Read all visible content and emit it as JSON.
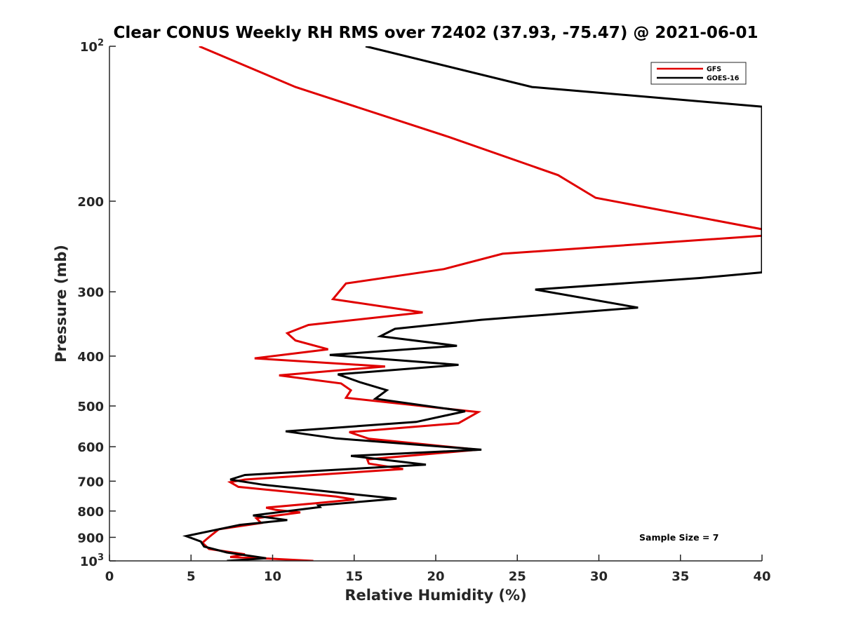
{
  "chart_data": {
    "type": "line",
    "title": "Clear CONUS Weekly RH RMS over 72402 (37.93, -75.47) @ 2021-06-01",
    "xlabel": "Relative Humidity (%)",
    "ylabel": "Pressure (mb)",
    "xlim": [
      0,
      40
    ],
    "ylim": [
      100,
      1000
    ],
    "yscale": "log",
    "y_reversed": true,
    "grid": false,
    "legend_position": "top-right",
    "x_ticks": [
      0,
      5,
      10,
      15,
      20,
      25,
      30,
      35,
      40
    ],
    "x_tick_labels": [
      "0",
      "5",
      "10",
      "15",
      "20",
      "25",
      "30",
      "35",
      "40"
    ],
    "y_ticks": [
      100,
      200,
      300,
      400,
      500,
      600,
      700,
      800,
      900,
      1000
    ],
    "y_tick_labels": [
      {
        "base": "10",
        "exp": "2"
      },
      {
        "base": "200",
        "exp": ""
      },
      {
        "base": "300",
        "exp": ""
      },
      {
        "base": "400",
        "exp": ""
      },
      {
        "base": "500",
        "exp": ""
      },
      {
        "base": "600",
        "exp": ""
      },
      {
        "base": "700",
        "exp": ""
      },
      {
        "base": "800",
        "exp": ""
      },
      {
        "base": "900",
        "exp": ""
      },
      {
        "base": "10",
        "exp": "3"
      }
    ],
    "annotation": "Sample Size = 7",
    "series": [
      {
        "name": "GFS",
        "color": "#e00000",
        "points": [
          [
            5.5,
            100
          ],
          [
            11.4,
            120
          ],
          [
            20.8,
            150
          ],
          [
            27.5,
            178
          ],
          [
            29.8,
            197
          ],
          [
            40.4,
            228
          ],
          [
            40.4,
            233
          ],
          [
            24.1,
            253
          ],
          [
            20.5,
            271
          ],
          [
            14.5,
            289
          ],
          [
            13.7,
            310
          ],
          [
            19.2,
            329
          ],
          [
            12.2,
            348
          ],
          [
            10.9,
            361
          ],
          [
            11.4,
            373
          ],
          [
            13.4,
            388
          ],
          [
            8.9,
            404
          ],
          [
            16.9,
            419
          ],
          [
            10.4,
            436
          ],
          [
            14.2,
            452
          ],
          [
            14.8,
            466
          ],
          [
            14.5,
            482
          ],
          [
            22.6,
            514
          ],
          [
            21.4,
            540
          ],
          [
            14.7,
            562
          ],
          [
            15.9,
            579
          ],
          [
            22.6,
            608
          ],
          [
            15.8,
            635
          ],
          [
            15.9,
            647
          ],
          [
            18.0,
            663
          ],
          [
            8.3,
            695
          ],
          [
            7.4,
            703
          ],
          [
            7.9,
            718
          ],
          [
            13.9,
            750
          ],
          [
            15.0,
            760
          ],
          [
            12.6,
            773
          ],
          [
            9.6,
            788
          ],
          [
            10.2,
            796
          ],
          [
            11.7,
            805
          ],
          [
            9.0,
            826
          ],
          [
            9.3,
            844
          ],
          [
            6.7,
            868
          ],
          [
            6.1,
            899
          ],
          [
            5.7,
            922
          ],
          [
            6.1,
            948
          ],
          [
            8.3,
            971
          ],
          [
            7.4,
            983
          ],
          [
            9.3,
            988
          ],
          [
            12.5,
            1000
          ]
        ]
      },
      {
        "name": "GOES-16",
        "color": "#000000",
        "points": [
          [
            15.7,
            100
          ],
          [
            25.9,
            120
          ],
          [
            40.0,
            131
          ],
          [
            40.0,
            275
          ],
          [
            36.2,
            282
          ],
          [
            26.1,
            297
          ],
          [
            32.4,
            322
          ],
          [
            22.8,
            340
          ],
          [
            17.5,
            354
          ],
          [
            16.6,
            366
          ],
          [
            21.3,
            382
          ],
          [
            13.5,
            398
          ],
          [
            21.4,
            416
          ],
          [
            14.0,
            434
          ],
          [
            15.4,
            450
          ],
          [
            17.0,
            466
          ],
          [
            16.3,
            484
          ],
          [
            21.8,
            512
          ],
          [
            18.8,
            537
          ],
          [
            10.8,
            560
          ],
          [
            13.9,
            578
          ],
          [
            22.8,
            608
          ],
          [
            14.8,
            625
          ],
          [
            19.4,
            650
          ],
          [
            8.3,
            681
          ],
          [
            7.4,
            695
          ],
          [
            9.4,
            711
          ],
          [
            15.1,
            743
          ],
          [
            17.6,
            757
          ],
          [
            12.8,
            780
          ],
          [
            12.9,
            786
          ],
          [
            8.8,
            816
          ],
          [
            10.9,
            833
          ],
          [
            8.0,
            851
          ],
          [
            4.7,
            895
          ],
          [
            5.6,
            917
          ],
          [
            5.8,
            938
          ],
          [
            7.2,
            963
          ],
          [
            9.6,
            988
          ],
          [
            7.2,
            1000
          ]
        ]
      }
    ]
  }
}
